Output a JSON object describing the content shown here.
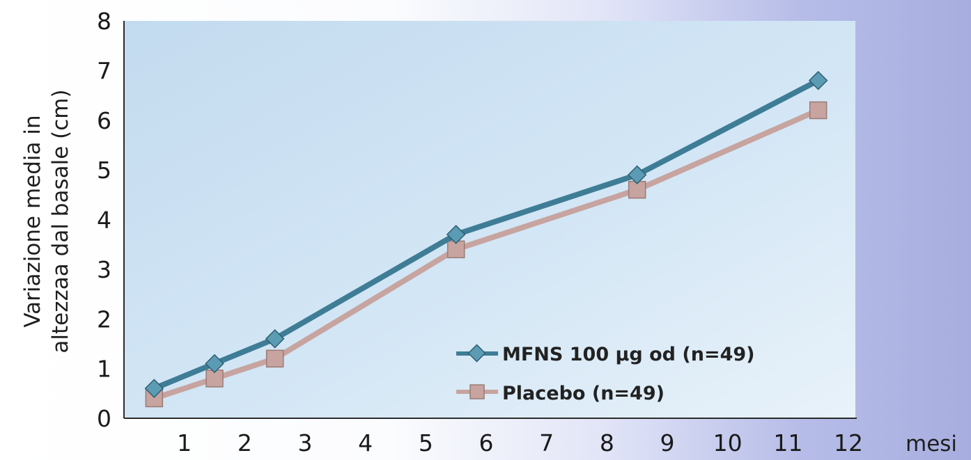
{
  "chart_data": {
    "type": "line",
    "x": [
      0.5,
      1.5,
      2.5,
      5.5,
      8.5,
      11.5
    ],
    "series": [
      {
        "name": "MFNS 100 µg od (n=49)",
        "values": [
          0.6,
          1.1,
          1.6,
          3.7,
          4.9,
          6.8
        ],
        "color": "#3e7d95",
        "marker": "diamond"
      },
      {
        "name": "Placebo (n=49)",
        "values": [
          0.4,
          0.8,
          1.2,
          3.4,
          4.6,
          6.2
        ],
        "color": "#c7a4a0",
        "marker": "square"
      }
    ],
    "xticks": [
      "1",
      "2",
      "3",
      "4",
      "5",
      "6",
      "7",
      "8",
      "9",
      "10",
      "11",
      "12"
    ],
    "yticks": [
      "0",
      "1",
      "2",
      "3",
      "4",
      "5",
      "6",
      "7",
      "8"
    ],
    "xlabel": "mesi",
    "ylabel": [
      "Variazione media in",
      "altezzaa dal basale (cm)"
    ],
    "xlim": [
      0,
      12
    ],
    "ylim": [
      0,
      8
    ],
    "grid": false,
    "legend_position": "bottom-right",
    "plot_background": "#cfe3f3"
  }
}
